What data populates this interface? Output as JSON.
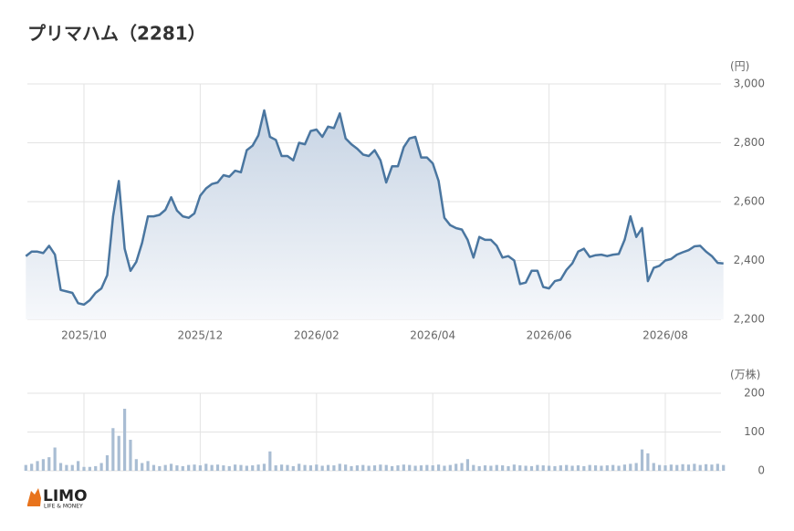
{
  "logo": {
    "name": "LIMO",
    "tagline": "LIFE & MONEY"
  },
  "chart_data": [
    {
      "type": "line",
      "title": "プリマハム（2281）",
      "y_label": "(円)",
      "color": "#4a76a0",
      "grid": true,
      "x": [
        0,
        0.1,
        0.2,
        0.3,
        0.4,
        0.5,
        0.6,
        0.7,
        0.8,
        0.9,
        1,
        1.1,
        1.2,
        1.3,
        1.4,
        1.5,
        1.6,
        1.7,
        1.8,
        1.9,
        2,
        2.1,
        2.2,
        2.3,
        2.4,
        2.5,
        2.6,
        2.7,
        2.8,
        2.9,
        3,
        3.1,
        3.2,
        3.3,
        3.4,
        3.5,
        3.6,
        3.7,
        3.8,
        3.9,
        4,
        4.1,
        4.2,
        4.3,
        4.4,
        4.5,
        4.6,
        4.7,
        4.8,
        4.9,
        5,
        5.1,
        5.2,
        5.3,
        5.4,
        5.5,
        5.6,
        5.7,
        5.8,
        5.9,
        6,
        6.1,
        6.2,
        6.3,
        6.4,
        6.5,
        6.6,
        6.7,
        6.8,
        6.9,
        7,
        7.1,
        7.2,
        7.3,
        7.4,
        7.5,
        7.6,
        7.7,
        7.8,
        7.9,
        8,
        8.1,
        8.2,
        8.3,
        8.4,
        8.5,
        8.6,
        8.7,
        8.8,
        8.9,
        9,
        9.1,
        9.2,
        9.3,
        9.4,
        9.5,
        9.6,
        9.7,
        9.8,
        9.9,
        10,
        10.1,
        10.2,
        10.3,
        10.4,
        10.5,
        10.6,
        10.7,
        10.8,
        10.9,
        11,
        11.1,
        11.2,
        11.3,
        11.4,
        11.5,
        11.6,
        11.7,
        11.8,
        11.9,
        12
      ],
      "values": [
        2415,
        2430,
        2430,
        2425,
        2450,
        2420,
        2300,
        2295,
        2290,
        2255,
        2250,
        2265,
        2290,
        2305,
        2350,
        2550,
        2670,
        2440,
        2365,
        2395,
        2460,
        2550,
        2550,
        2555,
        2572,
        2615,
        2570,
        2550,
        2545,
        2560,
        2620,
        2645,
        2660,
        2665,
        2690,
        2685,
        2705,
        2700,
        2775,
        2790,
        2825,
        2910,
        2820,
        2810,
        2755,
        2755,
        2740,
        2800,
        2795,
        2840,
        2845,
        2820,
        2855,
        2850,
        2900,
        2815,
        2795,
        2780,
        2760,
        2755,
        2775,
        2740,
        2665,
        2720,
        2720,
        2785,
        2815,
        2820,
        2750,
        2750,
        2730,
        2670,
        2545,
        2520,
        2510,
        2505,
        2470,
        2410,
        2480,
        2470,
        2470,
        2450,
        2410,
        2415,
        2400,
        2320,
        2325,
        2365,
        2365,
        2310,
        2305,
        2330,
        2335,
        2368,
        2390,
        2430,
        2440,
        2412,
        2418,
        2420,
        2415,
        2420,
        2422,
        2470,
        2550,
        2480,
        2510,
        2330,
        2375,
        2382,
        2400,
        2405,
        2420,
        2428,
        2435,
        2448,
        2450,
        2430,
        2415,
        2392,
        2390
      ],
      "xlim": [
        0,
        12
      ],
      "xticks": [
        {
          "value": 1,
          "label": "2025/10"
        },
        {
          "value": 3,
          "label": "2025/12"
        },
        {
          "value": 5,
          "label": "2026/02"
        },
        {
          "value": 7,
          "label": "2026/04"
        },
        {
          "value": 9,
          "label": "2026/06"
        },
        {
          "value": 11,
          "label": "2026/08"
        }
      ],
      "ylim": [
        2200,
        3000
      ],
      "yticks": [
        {
          "value": 2200,
          "label": "2,200"
        },
        {
          "value": 2400,
          "label": "2,400"
        },
        {
          "value": 2600,
          "label": "2,600"
        },
        {
          "value": 2800,
          "label": "2,800"
        },
        {
          "value": 3000,
          "label": "3,000"
        }
      ]
    },
    {
      "type": "bar",
      "y_label": "(万株)",
      "color": "#a9bdd3",
      "grid": true,
      "x": [
        0,
        0.1,
        0.2,
        0.3,
        0.4,
        0.5,
        0.6,
        0.7,
        0.8,
        0.9,
        1,
        1.1,
        1.2,
        1.3,
        1.4,
        1.5,
        1.6,
        1.7,
        1.8,
        1.9,
        2,
        2.1,
        2.2,
        2.3,
        2.4,
        2.5,
        2.6,
        2.7,
        2.8,
        2.9,
        3,
        3.1,
        3.2,
        3.3,
        3.4,
        3.5,
        3.6,
        3.7,
        3.8,
        3.9,
        4,
        4.1,
        4.2,
        4.3,
        4.4,
        4.5,
        4.6,
        4.7,
        4.8,
        4.9,
        5,
        5.1,
        5.2,
        5.3,
        5.4,
        5.5,
        5.6,
        5.7,
        5.8,
        5.9,
        6,
        6.1,
        6.2,
        6.3,
        6.4,
        6.5,
        6.6,
        6.7,
        6.8,
        6.9,
        7,
        7.1,
        7.2,
        7.3,
        7.4,
        7.5,
        7.6,
        7.7,
        7.8,
        7.9,
        8,
        8.1,
        8.2,
        8.3,
        8.4,
        8.5,
        8.6,
        8.7,
        8.8,
        8.9,
        9,
        9.1,
        9.2,
        9.3,
        9.4,
        9.5,
        9.6,
        9.7,
        9.8,
        9.9,
        10,
        10.1,
        10.2,
        10.3,
        10.4,
        10.5,
        10.6,
        10.7,
        10.8,
        10.9,
        11,
        11.1,
        11.2,
        11.3,
        11.4,
        11.5,
        11.6,
        11.7,
        11.8,
        11.9,
        12
      ],
      "values": [
        15,
        18,
        25,
        30,
        35,
        60,
        20,
        15,
        15,
        25,
        10,
        10,
        12,
        20,
        40,
        110,
        90,
        160,
        80,
        30,
        20,
        25,
        15,
        12,
        15,
        18,
        14,
        12,
        15,
        16,
        14,
        18,
        15,
        16,
        14,
        12,
        16,
        15,
        13,
        14,
        16,
        18,
        50,
        14,
        16,
        15,
        12,
        18,
        15,
        14,
        16,
        13,
        15,
        14,
        18,
        16,
        12,
        14,
        15,
        13,
        14,
        16,
        15,
        12,
        14,
        16,
        15,
        13,
        14,
        15,
        14,
        16,
        13,
        15,
        18,
        20,
        30,
        15,
        12,
        14,
        13,
        15,
        14,
        12,
        16,
        14,
        13,
        12,
        15,
        14,
        13,
        12,
        14,
        15,
        13,
        14,
        12,
        15,
        14,
        13,
        14,
        15,
        13,
        16,
        18,
        20,
        55,
        45,
        20,
        15,
        14,
        16,
        15,
        17,
        16,
        18,
        15,
        17,
        16,
        18,
        15
      ],
      "xlim": [
        0,
        12
      ],
      "ylim": [
        0,
        200
      ],
      "yticks": [
        0,
        100,
        200
      ]
    }
  ]
}
